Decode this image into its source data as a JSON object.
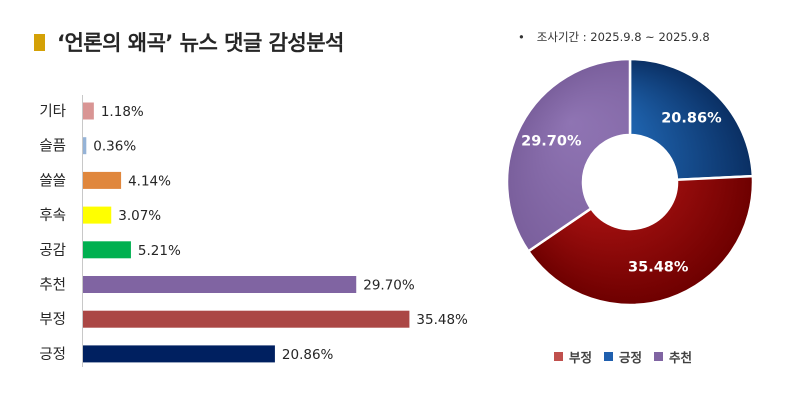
{
  "header": {
    "title": "‘언론의 왜곡’ 뉴스 댓글 감성분석",
    "period_bullet": "•",
    "period": "조사기간 : 2025.9.8 ~ 2025.9.8"
  },
  "chart_data": [
    {
      "type": "bar",
      "orientation": "horizontal",
      "categories": [
        "기타",
        "슬픔",
        "쓸쓸",
        "후속",
        "공감",
        "추천",
        "부정",
        "긍정"
      ],
      "values": [
        1.18,
        0.36,
        4.14,
        3.07,
        5.21,
        29.7,
        35.48,
        20.86
      ],
      "value_labels": [
        "1.18%",
        "0.36%",
        "4.14%",
        "3.07%",
        "5.21%",
        "29.70%",
        "35.48%",
        "20.86%"
      ],
      "colors": [
        "#d99594",
        "#95b3d7",
        "#e0873d",
        "#ffff00",
        "#00b050",
        "#8064a2",
        "#ab4745",
        "#002060"
      ],
      "xlim": [
        0,
        37
      ],
      "grid": false,
      "legend": false
    },
    {
      "type": "pie",
      "style": "donut",
      "labels": [
        "긍정",
        "부정",
        "추천"
      ],
      "values": [
        20.86,
        35.48,
        29.7
      ],
      "value_labels": [
        "20.86%",
        "35.48%",
        "29.70%"
      ],
      "colors": [
        "#0d55a8",
        "#b01010",
        "#8064a2"
      ],
      "legend": "bottom",
      "legend_entries": [
        {
          "label": "부정",
          "color": "#c0504d"
        },
        {
          "label": "긍정",
          "color": "#1f5fae"
        },
        {
          "label": "추천",
          "color": "#8064a2"
        }
      ]
    }
  ]
}
